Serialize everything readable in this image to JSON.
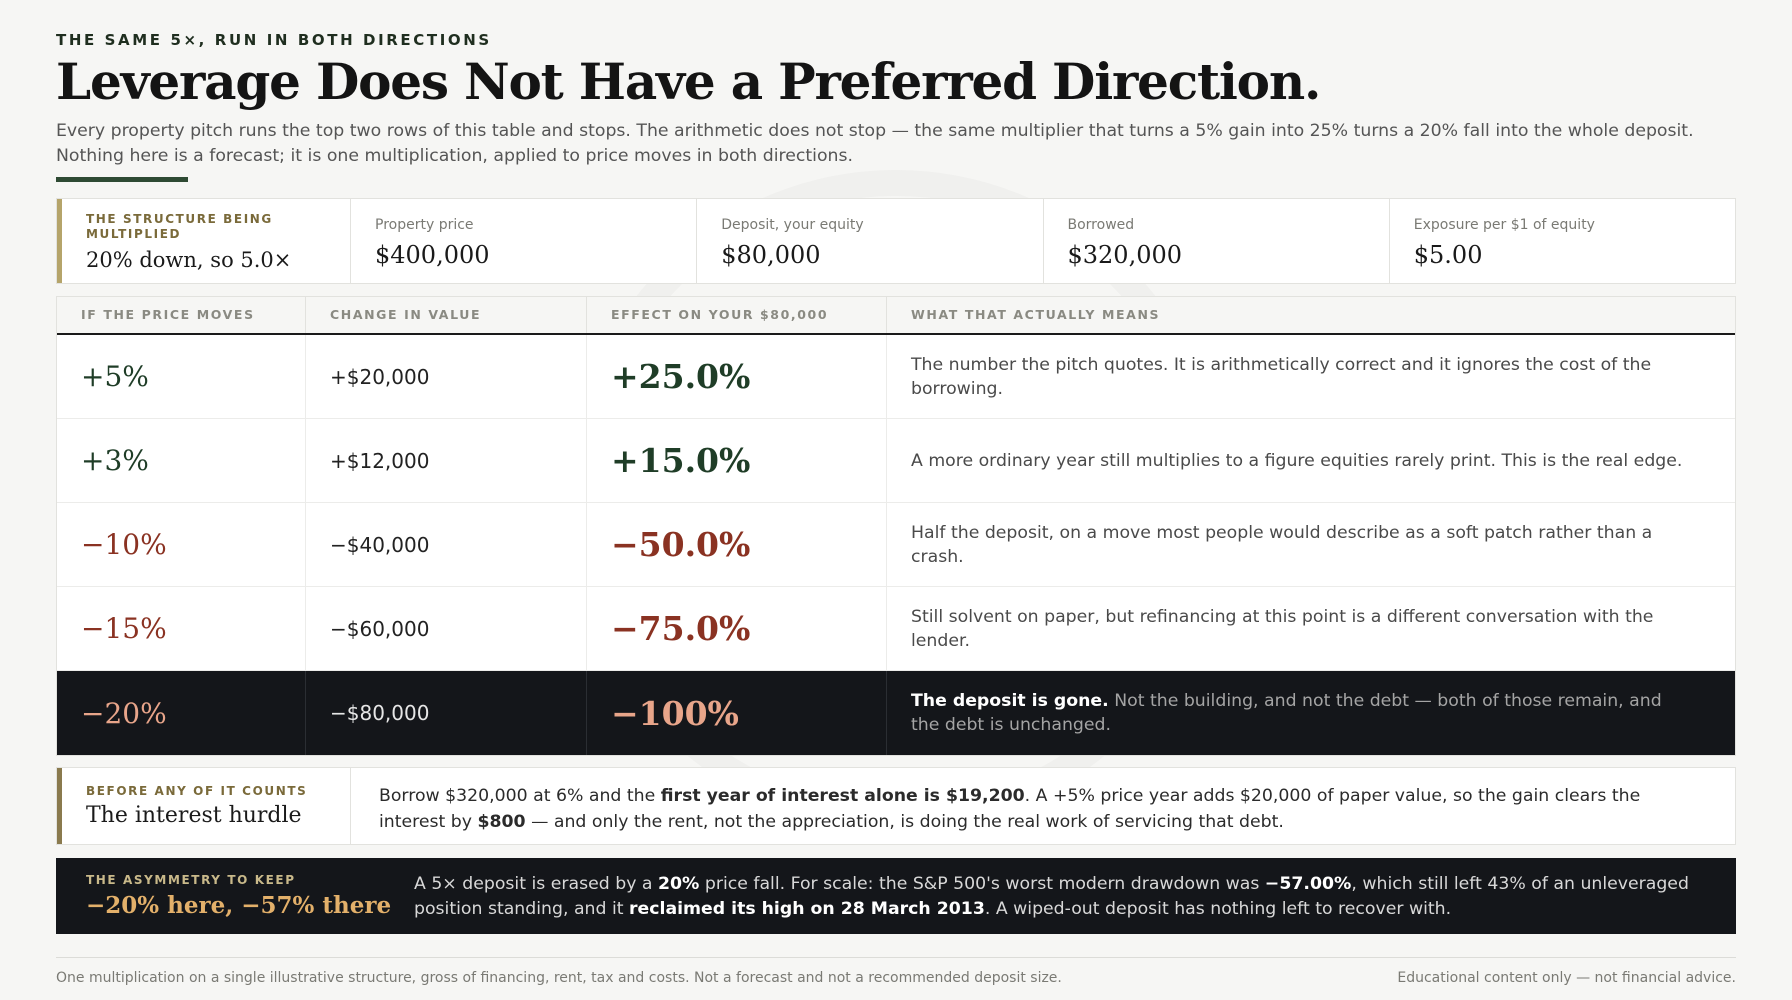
{
  "kicker": "THE SAME 5×, RUN IN BOTH DIRECTIONS",
  "headline": "Leverage Does Not Have a Preferred Direction.",
  "dek": "Every property pitch runs the top two rows of this table and stops. The arithmetic does not stop — the same multiplier that turns a 5% gain into 25% turns a 20% fall into the whole deposit. Nothing here is a forecast; it is one multiplication, applied to price moves in both directions.",
  "structure": {
    "label": "THE STRUCTURE BEING MULTIPLIED",
    "value": "20% down, so 5.0×",
    "stats": [
      {
        "label": "Property price",
        "value": "$400,000"
      },
      {
        "label": "Deposit, your equity",
        "value": "$80,000"
      },
      {
        "label": "Borrowed",
        "value": "$320,000"
      },
      {
        "label": "Exposure per $1 of equity",
        "value": "$5.00"
      }
    ]
  },
  "table": {
    "headers": [
      "IF THE PRICE MOVES",
      "CHANGE IN VALUE",
      "EFFECT ON YOUR $80,000",
      "WHAT THAT ACTUALLY MEANS"
    ],
    "rows": [
      {
        "move": "+5%",
        "change": "+$20,000",
        "effect": "+25.0%",
        "meaning": "The number the pitch quotes. It is arithmetically correct and it ignores the cost of the borrowing."
      },
      {
        "move": "+3%",
        "change": "+$12,000",
        "effect": "+15.0%",
        "meaning": "A more ordinary year still multiplies to a figure equities rarely print. This is the real edge."
      },
      {
        "move": "−10%",
        "change": "−$40,000",
        "effect": "−50.0%",
        "meaning": "Half the deposit, on a move most people would describe as a soft patch rather than a crash."
      },
      {
        "move": "−15%",
        "change": "−$60,000",
        "effect": "−75.0%",
        "meaning": "Still solvent on paper, but refinancing at this point is a different conversation with the lender."
      },
      {
        "move": "−20%",
        "change": "−$80,000",
        "effect": "−100%",
        "meaning_bold": "The deposit is gone.",
        "meaning": " Not the building, and not the debt — both of those remain, and the debt is unchanged."
      }
    ]
  },
  "hurdle": {
    "label": "BEFORE ANY OF IT COUNTS",
    "title": "The interest hurdle",
    "t1": "Borrow $320,000 at 6% and the ",
    "b1": "first year of interest alone is $19,200",
    "t2": ". A +5% price year adds $20,000 of paper value, so the gain clears the interest by ",
    "b2": "$800",
    "t3": " — and only the rent, not the appreciation, is doing the real work of servicing that debt."
  },
  "asymmetry": {
    "label": "THE ASYMMETRY TO KEEP",
    "title": "−20% here, −57% there",
    "t1": "A 5× deposit is erased by a ",
    "b1": "20%",
    "t2": " price fall. For scale: the S&P 500's worst modern drawdown was ",
    "b2": "−57.00%",
    "t3": ", which still left 43% of an unleveraged position standing, and it ",
    "b3": "reclaimed its high on 28 March 2013",
    "t4": ". A wiped-out deposit has nothing left to recover with."
  },
  "footer": {
    "left": "One multiplication on a single illustrative structure, gross of financing, rent, tax and costs. Not a forecast and not a recommended deposit size.",
    "right": "Educational content only — not financial advice."
  },
  "colors": {
    "positive": "#1f3d27",
    "negative": "#8a3222",
    "dark_band": "#14161a",
    "accent": "#b5a46a"
  }
}
